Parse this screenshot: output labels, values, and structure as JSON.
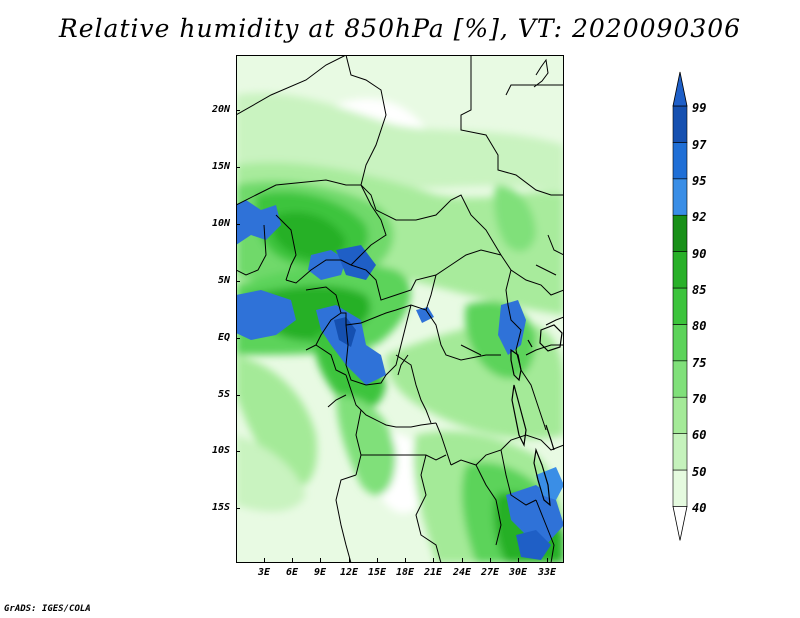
{
  "title": "Relative humidity at 850hPa [%], VT: 2020090306",
  "footer": "GrADS: IGES/COLA",
  "map": {
    "lat_labels": [
      "20N",
      "15N",
      "10N",
      "5N",
      "EQ",
      "5S",
      "10S",
      "15S"
    ],
    "lon_labels": [
      "3E",
      "6E",
      "9E",
      "12E",
      "15E",
      "18E",
      "21E",
      "24E",
      "27E",
      "30E",
      "33E"
    ]
  },
  "colorbar": {
    "levels": [
      "99",
      "97",
      "95",
      "92",
      "90",
      "85",
      "80",
      "75",
      "70",
      "60",
      "50",
      "40"
    ],
    "colors": [
      "#ffffff",
      "#e5fadf",
      "#c5f2bc",
      "#a4ea98",
      "#80e07a",
      "#5cd35a",
      "#3cc43c",
      "#28b028",
      "#189018",
      "#3a8ee6",
      "#1f6fd6",
      "#1550b0",
      "#1e5fc8"
    ],
    "top_arrow_color": "#1e5fc8",
    "bottom_arrow_color": "#ffffff"
  }
}
